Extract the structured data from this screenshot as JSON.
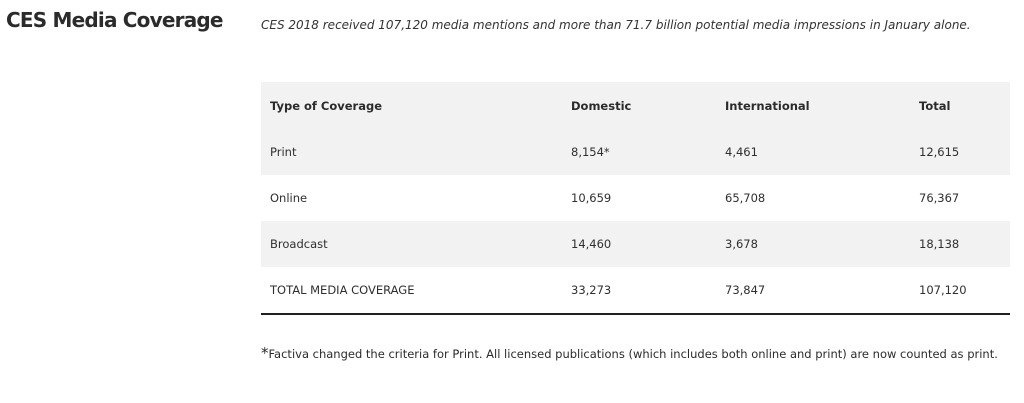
{
  "section": {
    "title": "CES Media Coverage",
    "intro": "CES 2018 received 107,120 media mentions and more than 71.7 billion potential media impressions in January alone."
  },
  "table": {
    "headers": [
      "Type of Coverage",
      "Domestic",
      "International",
      "Total"
    ],
    "rows": [
      [
        "Print",
        "8,154*",
        "4,461",
        "12,615"
      ],
      [
        "Online",
        "10,659",
        "65,708",
        "76,367"
      ],
      [
        "Broadcast",
        "14,460",
        "3,678",
        "18,138"
      ],
      [
        "TOTAL MEDIA COVERAGE",
        "33,273",
        "73,847",
        "107,120"
      ]
    ]
  },
  "footnote": {
    "marker": "*",
    "text": "Factiva changed the criteria for Print. All licensed  publications (which includes both online and print) are now counted as print."
  }
}
